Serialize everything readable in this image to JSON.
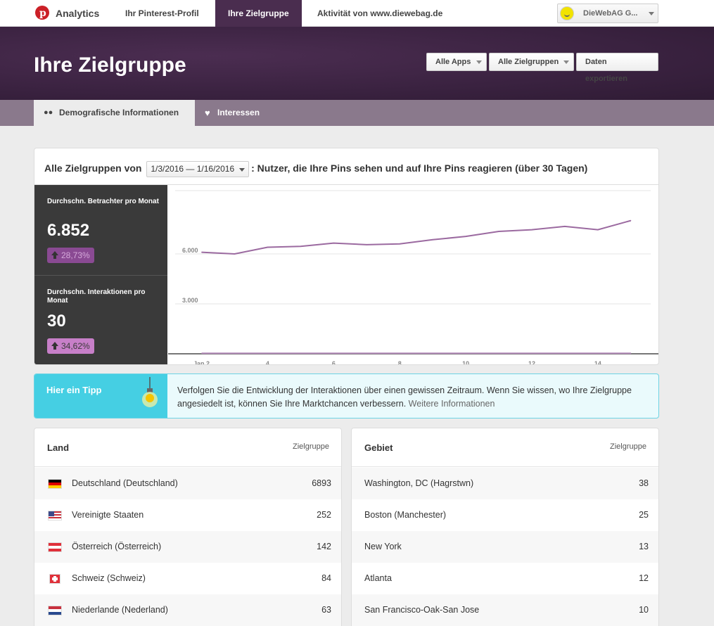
{
  "topnav": {
    "brand": "Analytics",
    "tabs": [
      {
        "label": "Ihr Pinterest-Profil"
      },
      {
        "label": "Ihre Zielgruppe"
      },
      {
        "label": "Aktivität von www.diewebag.de"
      }
    ],
    "account": {
      "name": "DieWebAG G..."
    }
  },
  "hero": {
    "title": "Ihre Zielgruppe",
    "buttons": {
      "apps": "Alle Apps",
      "audiences": "Alle Zielgruppen",
      "export": "Daten exportieren"
    }
  },
  "subnav": {
    "tabs": [
      {
        "label": "Demografische Informationen",
        "icon": "people-icon"
      },
      {
        "label": "Interessen",
        "icon": "heart-icon"
      }
    ]
  },
  "filter": {
    "prefix": "Alle Zielgruppen von",
    "date_range": "1/3/2016 — 1/16/2016",
    "suffix": ": Nutzer, die Ihre Pins sehen und auf Ihre Pins reagieren (über 30 Tagen)"
  },
  "metrics": [
    {
      "label": "Durchschn. Betrachter pro Monat",
      "value": "6.852",
      "change": "28,73%",
      "color": "#8a4a93"
    },
    {
      "label": "Durchschn. Interaktionen pro Monat",
      "value": "30",
      "change": "34,62%",
      "color": "#c77fc8"
    }
  ],
  "chart_data": {
    "type": "line",
    "x": [
      2,
      3,
      4,
      5,
      6,
      7,
      8,
      9,
      10,
      11,
      12,
      13,
      14,
      15
    ],
    "x_ticks": [
      "Jan 2",
      "4",
      "6",
      "8",
      "10",
      "12",
      "14"
    ],
    "x_tick_values": [
      2,
      4,
      6,
      8,
      10,
      12,
      14
    ],
    "y_ticks": [
      "6.000",
      "3.000"
    ],
    "y_tick_values": [
      6000,
      3000
    ],
    "ylim": [
      0,
      9800
    ],
    "xlim": [
      1.2,
      15.6
    ],
    "series": [
      {
        "values": [
          6100,
          6000,
          6400,
          6450,
          6650,
          6550,
          6600,
          6850,
          7050,
          7350,
          7450,
          7650,
          7450,
          8000
        ],
        "color": "#9b6aa0"
      },
      {
        "values": [
          30,
          30,
          30,
          30,
          30,
          30,
          30,
          30,
          30,
          30,
          30,
          30,
          30,
          30
        ],
        "color": "#b28ab8"
      }
    ]
  },
  "tip": {
    "title": "Hier ein Tipp",
    "text": "Verfolgen Sie die Entwicklung der Interaktionen über einen gewissen Zeitraum. Wenn Sie wissen, wo Ihre Zielgruppe angesiedelt ist, können Sie Ihre Marktchancen verbessern.",
    "link": "Weitere Informationen"
  },
  "countries": {
    "header": "Land",
    "value_header": "Zielgruppe",
    "rows": [
      {
        "name": "Deutschland (Deutschland)",
        "value": "6893",
        "flag": "de"
      },
      {
        "name": "Vereinigte Staaten",
        "value": "252",
        "flag": "us"
      },
      {
        "name": "Österreich (Österreich)",
        "value": "142",
        "flag": "at"
      },
      {
        "name": "Schweiz (Schweiz)",
        "value": "84",
        "flag": "ch"
      },
      {
        "name": "Niederlande (Nederland)",
        "value": "63",
        "flag": "nl"
      }
    ]
  },
  "regions": {
    "header": "Gebiet",
    "value_header": "Zielgruppe",
    "rows": [
      {
        "name": "Washington, DC (Hagrstwn)",
        "value": "38"
      },
      {
        "name": "Boston (Manchester)",
        "value": "25"
      },
      {
        "name": "New York",
        "value": "13"
      },
      {
        "name": "Atlanta",
        "value": "12"
      },
      {
        "name": "San Francisco-Oak-San Jose",
        "value": "10"
      }
    ]
  }
}
